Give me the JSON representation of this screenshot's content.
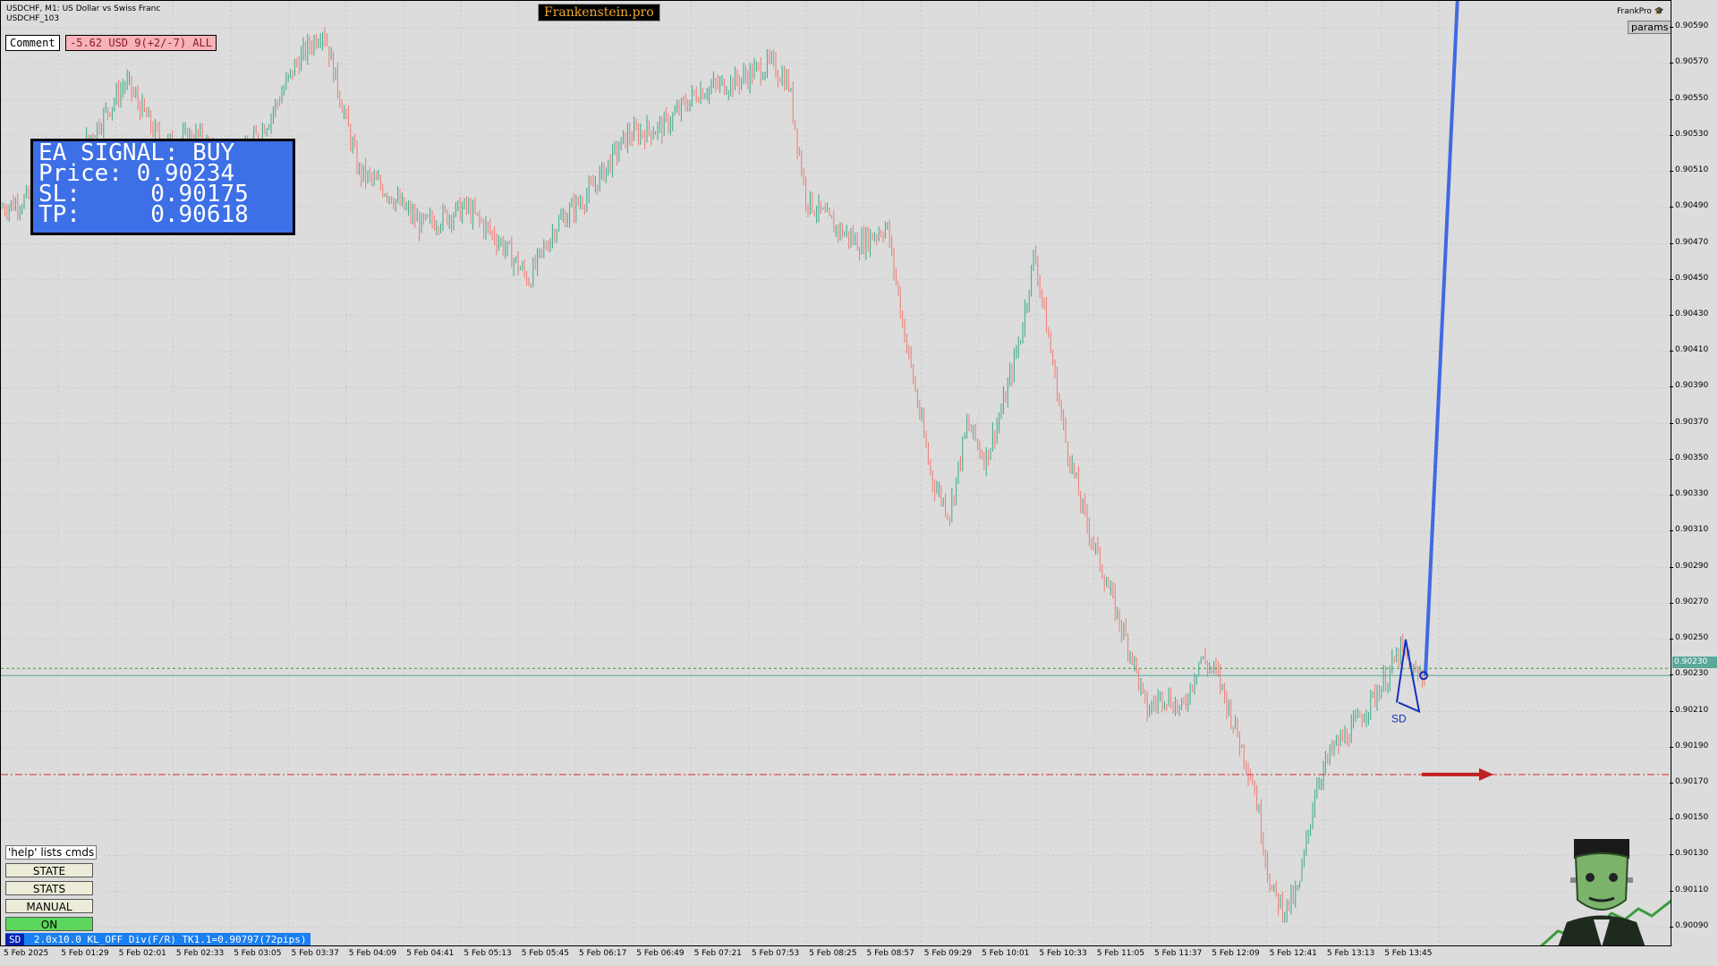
{
  "chart": {
    "symbol_line": "USDCHF, M1:  US Dollar vs Swiss Franc",
    "sub_line": "USDCHF_103",
    "brand": "Frankenstein.pro",
    "comment_label": "Comment",
    "pnl_label": "-5.62 USD 9(+2/-7) ALL",
    "signal": {
      "line1": "EA SIGNAL: BUY",
      "line2": "Price: 0.90234",
      "line3": "SL:     0.90175",
      "line4": "TP:     0.90618"
    },
    "frankpro_label": "FrankPro",
    "params_button": "params",
    "help_label": "'help' lists cmds",
    "buttons": {
      "state": "STATE",
      "stats": "STATS",
      "manual": "MANUAL",
      "on": "ON"
    },
    "sd_tag": "SD",
    "sd_status": "2.0x10.0 KL_OFF Div(F/R) TK1.1=0.90797(72pips)",
    "sd_marker": "SD",
    "current_price": "0.90230",
    "colors": {
      "bull": "#3aaa8a",
      "bear": "#f07a72",
      "signal_bg": "#3d6fe6",
      "tp_line": "#4169e1",
      "sl_line": "#d04040",
      "current_line": "#5ba89a"
    }
  },
  "chart_data": {
    "type": "candlestick",
    "price_ticks": [
      "0.90590",
      "0.90570",
      "0.90550",
      "0.90530",
      "0.90510",
      "0.90490",
      "0.90470",
      "0.90450",
      "0.90430",
      "0.90410",
      "0.90390",
      "0.90370",
      "0.90350",
      "0.90330",
      "0.90310",
      "0.90290",
      "0.90270",
      "0.90250",
      "0.90230",
      "0.90210",
      "0.90190",
      "0.90170",
      "0.90150",
      "0.90130",
      "0.90110",
      "0.90090"
    ],
    "time_ticks": [
      "5 Feb 2025",
      "5 Feb 01:29",
      "5 Feb 02:01",
      "5 Feb 02:33",
      "5 Feb 03:05",
      "5 Feb 03:37",
      "5 Feb 04:09",
      "5 Feb 04:41",
      "5 Feb 05:13",
      "5 Feb 05:45",
      "5 Feb 06:17",
      "5 Feb 06:49",
      "5 Feb 07:21",
      "5 Feb 07:53",
      "5 Feb 08:25",
      "5 Feb 08:57",
      "5 Feb 09:29",
      "5 Feb 10:01",
      "5 Feb 10:33",
      "5 Feb 11:05",
      "5 Feb 11:37",
      "5 Feb 12:09",
      "5 Feb 12:41",
      "5 Feb 13:13",
      "5 Feb 13:45"
    ],
    "y_range": [
      0.9008,
      0.90605
    ],
    "price_path": [
      [
        0,
        0.9049
      ],
      [
        60,
        0.905
      ],
      [
        100,
        0.9053
      ],
      [
        140,
        0.9056
      ],
      [
        180,
        0.90525
      ],
      [
        220,
        0.9053
      ],
      [
        260,
        0.9051
      ],
      [
        300,
        0.9054
      ],
      [
        330,
        0.9057
      ],
      [
        360,
        0.9059
      ],
      [
        385,
        0.9054
      ],
      [
        400,
        0.9051
      ],
      [
        430,
        0.905
      ],
      [
        470,
        0.9048
      ],
      [
        520,
        0.9049
      ],
      [
        560,
        0.9047
      ],
      [
        590,
        0.9045
      ],
      [
        620,
        0.9048
      ],
      [
        660,
        0.905
      ],
      [
        700,
        0.9053
      ],
      [
        740,
        0.90535
      ],
      [
        780,
        0.90555
      ],
      [
        820,
        0.9056
      ],
      [
        860,
        0.9057
      ],
      [
        880,
        0.9056
      ],
      [
        900,
        0.90495
      ],
      [
        930,
        0.9048
      ],
      [
        960,
        0.9047
      ],
      [
        990,
        0.9048
      ],
      [
        1010,
        0.9042
      ],
      [
        1040,
        0.9034
      ],
      [
        1060,
        0.9032
      ],
      [
        1080,
        0.9037
      ],
      [
        1100,
        0.9035
      ],
      [
        1120,
        0.9038
      ],
      [
        1140,
        0.9042
      ],
      [
        1155,
        0.90465
      ],
      [
        1170,
        0.9042
      ],
      [
        1190,
        0.9036
      ],
      [
        1210,
        0.9032
      ],
      [
        1230,
        0.9029
      ],
      [
        1250,
        0.9026
      ],
      [
        1265,
        0.9024
      ],
      [
        1280,
        0.9021
      ],
      [
        1300,
        0.9022
      ],
      [
        1320,
        0.9021
      ],
      [
        1340,
        0.9024
      ],
      [
        1360,
        0.9023
      ],
      [
        1380,
        0.902
      ],
      [
        1400,
        0.9017
      ],
      [
        1420,
        0.9011
      ],
      [
        1435,
        0.901
      ],
      [
        1450,
        0.9011
      ],
      [
        1470,
        0.9017
      ],
      [
        1490,
        0.9019
      ],
      [
        1510,
        0.902
      ],
      [
        1530,
        0.90215
      ],
      [
        1550,
        0.9023
      ],
      [
        1565,
        0.90245
      ],
      [
        1580,
        0.9023
      ],
      [
        1592,
        0.9023
      ]
    ]
  }
}
